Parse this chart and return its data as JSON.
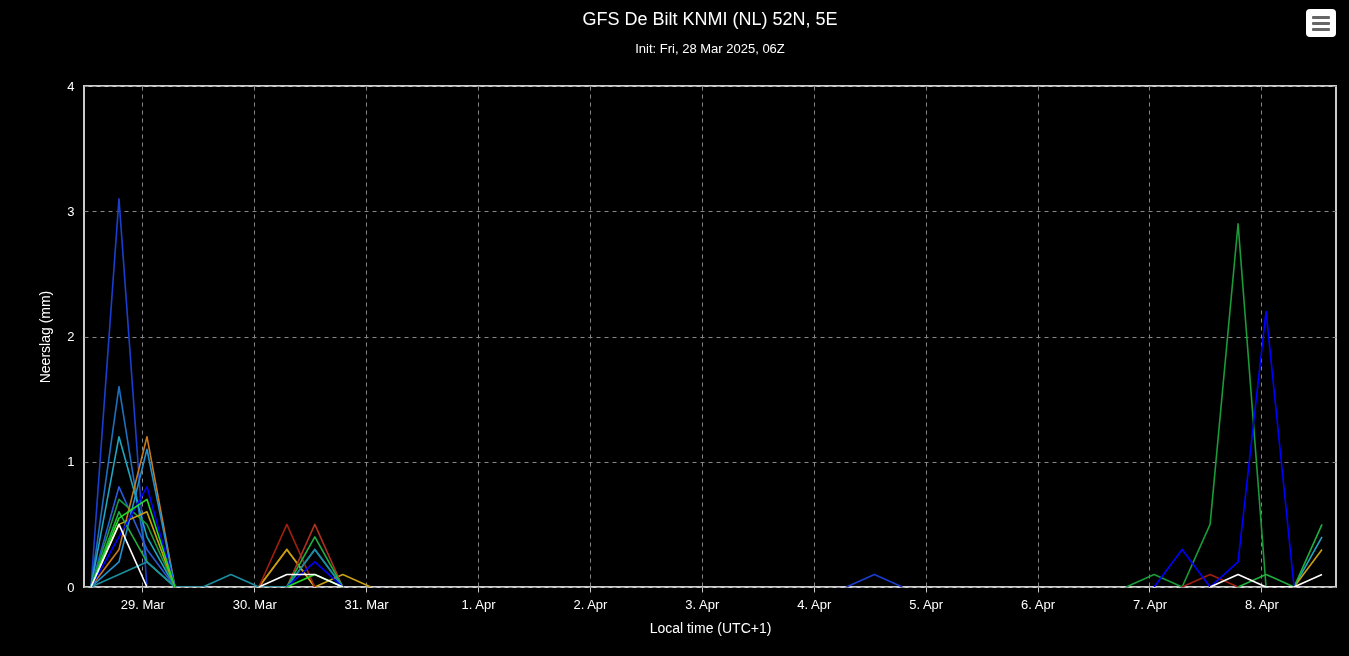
{
  "chart_data": {
    "type": "line",
    "title": "GFS De Bilt KNMI (NL) 52N, 5E",
    "subtitle": "Init: Fri, 28 Mar 2025, 06Z",
    "xlabel": "Local time (UTC+1)",
    "ylabel": "Neerslag (mm)",
    "x": [
      "2025-03-28T13:00",
      "2025-03-28T19:00",
      "2025-03-29T01:00",
      "2025-03-29T07:00",
      "2025-03-29T13:00",
      "2025-03-29T19:00",
      "2025-03-30T01:00",
      "2025-03-30T07:00",
      "2025-03-30T13:00",
      "2025-03-30T19:00",
      "2025-03-31T01:00",
      "2025-03-31T07:00",
      "2025-03-31T13:00",
      "2025-03-31T19:00",
      "2025-04-01T01:00",
      "2025-04-01T07:00",
      "2025-04-01T13:00",
      "2025-04-01T19:00",
      "2025-04-02T01:00",
      "2025-04-02T07:00",
      "2025-04-02T13:00",
      "2025-04-02T19:00",
      "2025-04-03T01:00",
      "2025-04-03T07:00",
      "2025-04-03T13:00",
      "2025-04-03T19:00",
      "2025-04-04T01:00",
      "2025-04-04T07:00",
      "2025-04-04T13:00",
      "2025-04-04T19:00",
      "2025-04-05T01:00",
      "2025-04-05T07:00",
      "2025-04-05T13:00",
      "2025-04-05T19:00",
      "2025-04-06T01:00",
      "2025-04-06T07:00",
      "2025-04-06T13:00",
      "2025-04-06T19:00",
      "2025-04-07T01:00",
      "2025-04-07T07:00",
      "2025-04-07T13:00",
      "2025-04-07T19:00",
      "2025-04-08T01:00",
      "2025-04-08T07:00",
      "2025-04-08T13:00"
    ],
    "series": [
      {
        "color": "#1a3fcf",
        "values": [
          0,
          3.1,
          0,
          null,
          null,
          null,
          null,
          null,
          null,
          null,
          null,
          null,
          null,
          null,
          null,
          null,
          null,
          null,
          null,
          null,
          null,
          null,
          null,
          null,
          null,
          null,
          null,
          0,
          0.1,
          0,
          null,
          null,
          null,
          null,
          null,
          null,
          null,
          null,
          null,
          null,
          null,
          null,
          null,
          null,
          null
        ]
      },
      {
        "color": "#1f6fbf",
        "values": [
          0,
          1.6,
          0.2,
          0,
          null,
          null,
          null,
          null,
          null,
          null,
          null,
          null,
          null,
          null,
          null,
          null,
          null,
          null,
          null,
          null,
          null,
          null,
          null,
          null,
          null,
          null,
          null,
          null,
          null,
          null,
          null,
          null,
          null,
          null,
          null,
          null,
          null,
          null,
          null,
          null,
          null,
          null,
          null,
          null,
          null
        ]
      },
      {
        "color": "#1fa5c0",
        "values": [
          0,
          1.2,
          0.4,
          0,
          null,
          null,
          null,
          null,
          null,
          null,
          null,
          null,
          null,
          null,
          null,
          null,
          null,
          null,
          null,
          null,
          null,
          null,
          null,
          null,
          null,
          null,
          null,
          null,
          null,
          null,
          null,
          null,
          null,
          null,
          null,
          null,
          null,
          null,
          null,
          null,
          null,
          null,
          null,
          0,
          0.4
        ]
      },
      {
        "color": "#2a5bd7",
        "values": [
          0,
          0.8,
          0.3,
          0,
          null,
          null,
          null,
          null,
          null,
          null,
          null,
          null,
          null,
          null,
          null,
          null,
          null,
          null,
          null,
          null,
          null,
          null,
          null,
          null,
          null,
          null,
          null,
          null,
          null,
          null,
          null,
          null,
          null,
          null,
          null,
          null,
          null,
          null,
          null,
          null,
          null,
          null,
          null,
          null,
          null
        ]
      },
      {
        "color": "#1a9a3a",
        "values": [
          0,
          0.7,
          0.5,
          0,
          null,
          null,
          null,
          null,
          null,
          null,
          null,
          null,
          null,
          null,
          null,
          null,
          null,
          null,
          null,
          null,
          null,
          null,
          null,
          null,
          null,
          null,
          null,
          null,
          null,
          null,
          null,
          null,
          null,
          null,
          null,
          null,
          null,
          0,
          0.1,
          0,
          0.5,
          2.9,
          0,
          null,
          null
        ]
      },
      {
        "color": "#c87a1a",
        "values": [
          0,
          0.3,
          1.2,
          0,
          null,
          null,
          0,
          0.3,
          0,
          null,
          null,
          null,
          null,
          null,
          null,
          null,
          null,
          null,
          null,
          null,
          null,
          null,
          null,
          null,
          null,
          null,
          null,
          null,
          null,
          null,
          null,
          null,
          null,
          null,
          null,
          null,
          null,
          null,
          null,
          null,
          null,
          null,
          null,
          null,
          null
        ]
      },
      {
        "color": "#2090d0",
        "values": [
          0,
          0.2,
          1.1,
          0,
          null,
          null,
          null,
          0,
          0.3,
          0,
          null,
          null,
          null,
          null,
          null,
          null,
          null,
          null,
          null,
          null,
          null,
          null,
          null,
          null,
          null,
          null,
          null,
          null,
          null,
          null,
          null,
          null,
          null,
          null,
          null,
          null,
          null,
          null,
          null,
          null,
          null,
          null,
          null,
          null,
          null
        ]
      },
      {
        "color": "#c8a010",
        "values": [
          0,
          0.5,
          0.6,
          0,
          null,
          null,
          0,
          0.3,
          0,
          0.1,
          0,
          null,
          null,
          null,
          null,
          null,
          null,
          null,
          null,
          null,
          null,
          null,
          null,
          null,
          null,
          null,
          null,
          null,
          null,
          null,
          null,
          null,
          null,
          null,
          null,
          null,
          null,
          null,
          null,
          null,
          null,
          null,
          null,
          0,
          0.3
        ]
      },
      {
        "color": "#a02010",
        "values": [
          null,
          null,
          null,
          null,
          null,
          null,
          0,
          0.5,
          0,
          null,
          null,
          null,
          null,
          null,
          null,
          null,
          null,
          null,
          null,
          null,
          null,
          null,
          null,
          null,
          null,
          null,
          null,
          null,
          null,
          null,
          null,
          null,
          null,
          null,
          null,
          null,
          null,
          null,
          null,
          0,
          0.1,
          0,
          null,
          null,
          null
        ]
      },
      {
        "color": "#b03020",
        "values": [
          null,
          null,
          null,
          null,
          null,
          null,
          null,
          0,
          0.5,
          0,
          null,
          null,
          null,
          null,
          null,
          null,
          null,
          null,
          null,
          null,
          null,
          null,
          null,
          null,
          null,
          null,
          null,
          null,
          null,
          null,
          null,
          null,
          null,
          null,
          null,
          null,
          null,
          null,
          null,
          null,
          null,
          null,
          null,
          null,
          null
        ]
      },
      {
        "color": "#20b040",
        "values": [
          0,
          0.6,
          0.2,
          0,
          null,
          null,
          null,
          0,
          0.4,
          0,
          null,
          null,
          null,
          null,
          null,
          null,
          null,
          null,
          null,
          null,
          null,
          null,
          null,
          null,
          null,
          null,
          null,
          null,
          null,
          null,
          null,
          null,
          null,
          null,
          null,
          null,
          null,
          null,
          null,
          null,
          null,
          0,
          0.1,
          0,
          0.5
        ]
      },
      {
        "color": "#1a8fa0",
        "values": [
          0,
          0.1,
          0.2,
          0,
          0,
          0.1,
          0,
          0,
          0.3,
          0,
          null,
          null,
          null,
          null,
          null,
          null,
          null,
          null,
          null,
          null,
          null,
          null,
          null,
          null,
          null,
          null,
          null,
          null,
          null,
          null,
          null,
          null,
          null,
          null,
          null,
          null,
          null,
          null,
          null,
          null,
          null,
          null,
          null,
          null,
          null
        ]
      },
      {
        "color": "#0000ff",
        "values": [
          0,
          0.4,
          0.8,
          0,
          null,
          null,
          null,
          0,
          0.2,
          0,
          null,
          null,
          null,
          null,
          null,
          null,
          null,
          null,
          null,
          null,
          null,
          null,
          null,
          null,
          null,
          null,
          null,
          null,
          null,
          null,
          null,
          null,
          null,
          null,
          null,
          null,
          null,
          null,
          0,
          0.3,
          0,
          0.2,
          2.2,
          0,
          null
        ]
      },
      {
        "color": "#22dd22",
        "values": [
          0,
          0.55,
          0.7,
          0,
          null,
          null,
          null,
          0,
          0.1,
          0,
          null,
          null,
          null,
          null,
          null,
          null,
          null,
          null,
          null,
          null,
          null,
          null,
          null,
          null,
          null,
          null,
          null,
          null,
          null,
          null,
          null,
          null,
          null,
          null,
          null,
          null,
          null,
          null,
          null,
          null,
          null,
          null,
          null,
          null,
          null
        ]
      },
      {
        "color": "#ffffff",
        "values": [
          0,
          0.5,
          0,
          null,
          null,
          null,
          0,
          0.1,
          0.1,
          0,
          null,
          null,
          null,
          null,
          null,
          null,
          null,
          null,
          null,
          null,
          null,
          null,
          null,
          null,
          null,
          null,
          null,
          null,
          null,
          null,
          null,
          null,
          null,
          null,
          null,
          null,
          null,
          null,
          null,
          null,
          0,
          0.1,
          0,
          0,
          0.1
        ]
      }
    ],
    "xlim": [
      "2025-03-28T11:30",
      "2025-04-08T16:00"
    ],
    "xticks": [
      {
        "value": "2025-03-29",
        "label": "29. Mar"
      },
      {
        "value": "2025-03-30",
        "label": "30. Mar"
      },
      {
        "value": "2025-03-31",
        "label": "31. Mar"
      },
      {
        "value": "2025-04-01",
        "label": "1. Apr"
      },
      {
        "value": "2025-04-02",
        "label": "2. Apr"
      },
      {
        "value": "2025-04-03",
        "label": "3. Apr"
      },
      {
        "value": "2025-04-04",
        "label": "4. Apr"
      },
      {
        "value": "2025-04-05",
        "label": "5. Apr"
      },
      {
        "value": "2025-04-06",
        "label": "6. Apr"
      },
      {
        "value": "2025-04-07",
        "label": "7. Apr"
      },
      {
        "value": "2025-04-08",
        "label": "8. Apr"
      }
    ],
    "ylim": [
      0,
      4
    ],
    "yticks": [
      0,
      1,
      2,
      3,
      4
    ],
    "grid": true
  }
}
